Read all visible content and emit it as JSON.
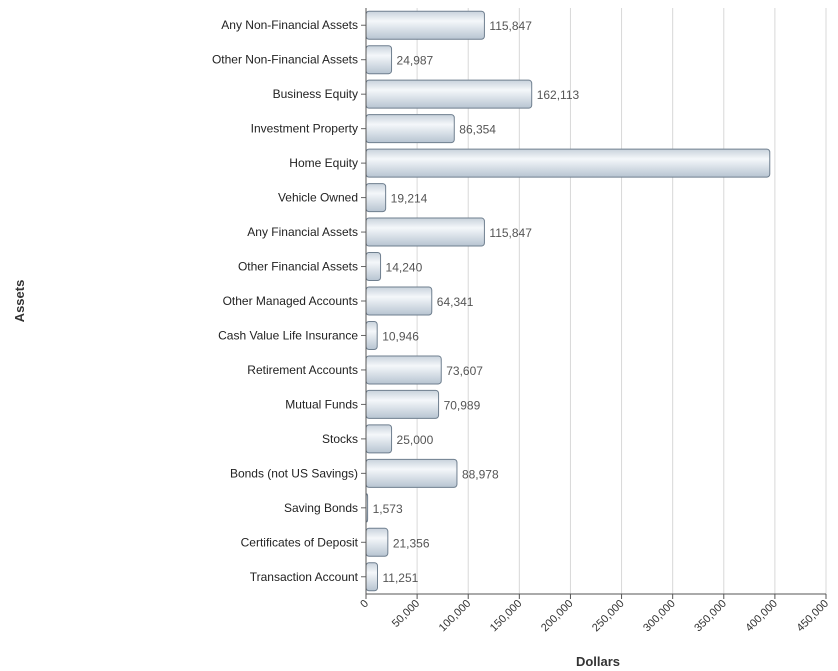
{
  "chart_data": {
    "type": "bar",
    "orientation": "horizontal",
    "xlabel": "Dollars",
    "ylabel": "Assets",
    "xlim": [
      0,
      450000
    ],
    "xticks": [
      0,
      50000,
      100000,
      150000,
      200000,
      250000,
      300000,
      350000,
      400000,
      450000
    ],
    "xtick_labels": [
      "0",
      "50,000",
      "100,000",
      "150,000",
      "200,000",
      "250,000",
      "300,000",
      "350,000",
      "400,000",
      "450,000"
    ],
    "grid": "vertical",
    "categories": [
      "Any Non-Financial Assets",
      "Other Non-Financial Assets",
      "Business Equity",
      "Investment Property",
      "Home Equity",
      "Vehicle Owned",
      "Any Financial Assets",
      "Other Financial Assets",
      "Other Managed Accounts",
      "Cash Value Life Insurance",
      "Retirement Accounts",
      "Mutual Funds",
      "Stocks",
      "Bonds (not US Savings)",
      "Saving Bonds",
      "Certificates of Deposit",
      "Transaction Account"
    ],
    "values": [
      115847,
      24987,
      162113,
      86354,
      395000,
      19214,
      115847,
      14240,
      64341,
      10946,
      73607,
      70989,
      25000,
      88978,
      1573,
      21356,
      11251
    ],
    "value_labels": [
      "115,847",
      "24,987",
      "162,113",
      "86,354",
      "",
      "19,214",
      "115,847",
      "14,240",
      "64,341",
      "10,946",
      "73,607",
      "70,989",
      "25,000",
      "88,978",
      "1,573",
      "21,356",
      "11,251"
    ],
    "bar_color": "#d4dde6",
    "bar_edge_color": "#6f7f8f"
  }
}
